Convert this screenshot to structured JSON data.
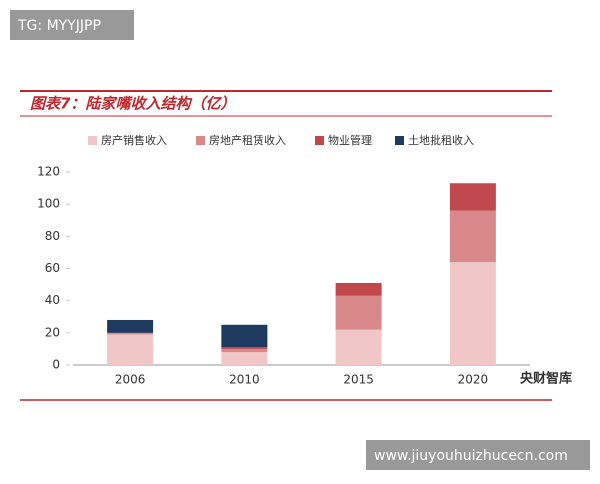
{
  "watermarks": {
    "top": "TG: MYYJJPP",
    "bottom": "www.jiuyouhuizhucecn.com",
    "logo": "央财智库"
  },
  "chart_data": {
    "type": "stacked_bar",
    "title": "图表7：陆家嘴收入结构（亿）",
    "categories": [
      "2006",
      "2010",
      "2015",
      "2020"
    ],
    "series": [
      {
        "name": "房产销售收入",
        "color": "#f0c6c6",
        "values": [
          19,
          8,
          22,
          64
        ]
      },
      {
        "name": "房地产租赁收入",
        "color": "#d98989",
        "values": [
          1,
          2,
          21,
          32
        ]
      },
      {
        "name": "物业管理",
        "color": "#c0474b",
        "values": [
          0,
          1,
          8,
          17
        ]
      },
      {
        "name": "土地批租收入",
        "color": "#1f3a5f",
        "values": [
          8,
          14,
          0,
          0
        ]
      }
    ],
    "ylim": [
      0,
      120
    ],
    "yticks": [
      0,
      20,
      40,
      60,
      80,
      100,
      120
    ],
    "grid": false
  }
}
